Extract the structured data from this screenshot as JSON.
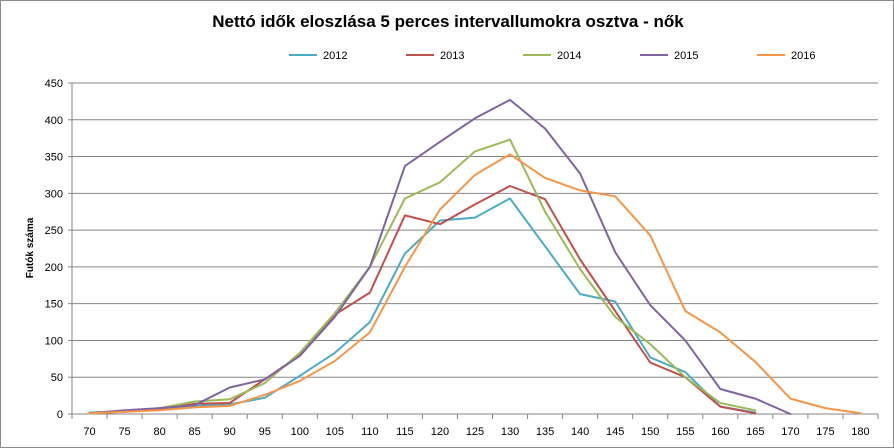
{
  "chart_data": {
    "type": "line",
    "title": "Nettó idők eloszlása 5 perces intervallumokra osztva - nők",
    "xlabel": "",
    "ylabel": "Futók száma",
    "x": [
      70,
      75,
      80,
      85,
      90,
      95,
      100,
      105,
      110,
      115,
      120,
      125,
      130,
      135,
      140,
      145,
      150,
      155,
      160,
      165,
      170,
      175,
      180
    ],
    "ylim": [
      0,
      450
    ],
    "yticks": [
      0,
      50,
      100,
      150,
      200,
      250,
      300,
      350,
      400,
      450
    ],
    "grid": "horizontal",
    "legend_position": "top",
    "series": [
      {
        "name": "2012",
        "color": "#4bacc6",
        "values": [
          2,
          4,
          6,
          11,
          13,
          22,
          52,
          83,
          125,
          218,
          263,
          267,
          293,
          228,
          163,
          153,
          77,
          57,
          10,
          2,
          null,
          null,
          null
        ]
      },
      {
        "name": "2013",
        "color": "#c0504d",
        "values": [
          1,
          3,
          7,
          14,
          15,
          47,
          80,
          135,
          165,
          270,
          258,
          285,
          310,
          292,
          210,
          140,
          70,
          50,
          10,
          1,
          null,
          null,
          null
        ]
      },
      {
        "name": "2014",
        "color": "#9bbb59",
        "values": [
          1,
          3,
          8,
          17,
          20,
          42,
          83,
          137,
          200,
          293,
          315,
          357,
          373,
          275,
          197,
          132,
          95,
          50,
          15,
          5,
          null,
          null,
          null
        ]
      },
      {
        "name": "2015",
        "color": "#8064a2",
        "values": [
          1,
          5,
          8,
          12,
          36,
          47,
          79,
          132,
          200,
          337,
          370,
          402,
          427,
          388,
          327,
          220,
          148,
          100,
          34,
          21,
          0,
          null,
          null
        ]
      },
      {
        "name": "2016",
        "color": "#f79646",
        "values": [
          1,
          3,
          5,
          9,
          11,
          26,
          45,
          72,
          111,
          200,
          278,
          325,
          353,
          321,
          304,
          296,
          243,
          140,
          111,
          71,
          21,
          8,
          1
        ]
      }
    ]
  }
}
